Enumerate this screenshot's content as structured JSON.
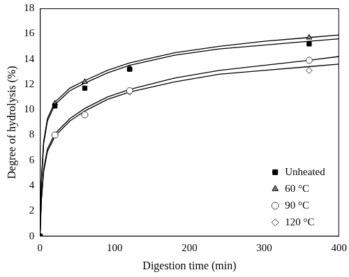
{
  "chart_data": {
    "type": "scatter",
    "x_label": "Digestion time (min)",
    "y_label": "Degree of hydrolysis (%)",
    "xlim": [
      0,
      400
    ],
    "xticks": [
      0,
      100,
      200,
      300,
      400
    ],
    "ylim": [
      0,
      18
    ],
    "yticks": [
      0,
      2,
      4,
      6,
      8,
      10,
      12,
      14,
      16,
      18
    ],
    "grid": false,
    "legend": "lower right",
    "series": [
      {
        "name": "Unheated",
        "color": "#000000",
        "marker": "square",
        "x": [
          0,
          20,
          60,
          120,
          360
        ],
        "values": [
          0,
          10.3,
          11.7,
          13.2,
          15.2
        ]
      },
      {
        "name": "60 °C",
        "color": "#808080",
        "marker": "triangle",
        "x": [
          0,
          20,
          60,
          120,
          360
        ],
        "values": [
          0,
          10.5,
          12.2,
          13.3,
          15.7
        ]
      },
      {
        "name": "90 °C",
        "color": "#ffffff",
        "marker": "circle",
        "x": [
          0,
          20,
          60,
          120,
          360
        ],
        "values": [
          0,
          8.0,
          9.6,
          11.5,
          13.9
        ]
      },
      {
        "name": "120 °C",
        "color": "#ffffff",
        "marker": "diamond",
        "x": [
          0,
          20,
          60,
          120,
          360
        ],
        "values": [
          0,
          8.0,
          9.6,
          11.4,
          13.1
        ]
      },
      {
        "type": "line",
        "color": "#000000",
        "marker": "none",
        "line_style": "solid",
        "x": [
          0,
          2,
          5,
          10,
          20,
          40,
          60,
          90,
          120,
          180,
          240,
          300,
          360,
          400
        ],
        "values": [
          0,
          4.3,
          7.3,
          9.1,
          10.4,
          11.5,
          12.1,
          12.9,
          13.5,
          14.3,
          14.8,
          15.1,
          15.4,
          15.6
        ]
      },
      {
        "type": "line",
        "color": "#000000",
        "marker": "none",
        "line_style": "solid",
        "x": [
          0,
          2,
          5,
          10,
          20,
          40,
          60,
          90,
          120,
          180,
          240,
          300,
          360,
          400
        ],
        "values": [
          0,
          4.5,
          7.5,
          9.3,
          10.6,
          11.7,
          12.3,
          13.1,
          13.7,
          14.5,
          15.0,
          15.4,
          15.7,
          15.9
        ]
      },
      {
        "type": "line",
        "color": "#000000",
        "marker": "none",
        "line_style": "solid",
        "x": [
          0,
          2,
          5,
          10,
          20,
          40,
          60,
          90,
          120,
          180,
          240,
          300,
          360,
          400
        ],
        "values": [
          0,
          3.0,
          5.3,
          6.9,
          8.1,
          9.3,
          10.1,
          11.0,
          11.6,
          12.5,
          13.1,
          13.5,
          13.9,
          14.2
        ]
      },
      {
        "type": "line",
        "color": "#000000",
        "marker": "none",
        "line_style": "solid",
        "x": [
          0,
          2,
          5,
          10,
          20,
          40,
          60,
          90,
          120,
          180,
          240,
          300,
          360,
          400
        ],
        "values": [
          0,
          2.9,
          5.1,
          6.7,
          7.9,
          9.1,
          9.9,
          10.8,
          11.4,
          12.2,
          12.8,
          13.1,
          13.4,
          13.6
        ]
      }
    ]
  }
}
